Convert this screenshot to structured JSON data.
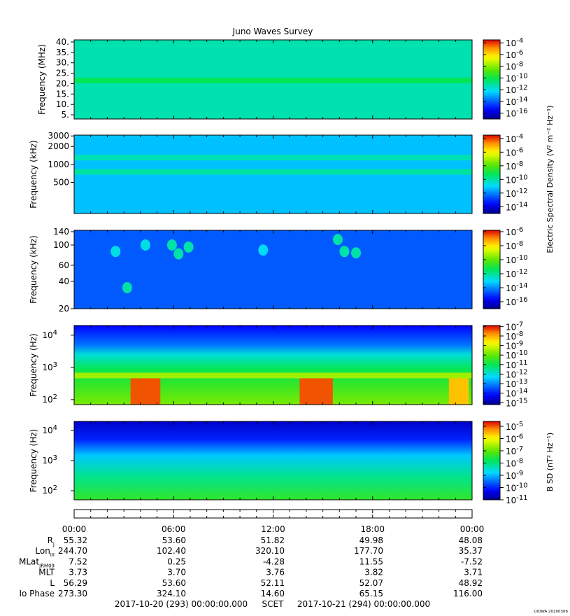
{
  "title": "Juno Waves Survey",
  "chart_data": [
    {
      "type": "heatmap",
      "ylabel": "Frequency (MHz)",
      "y_scale": "linear",
      "ylim": [
        3,
        41
      ],
      "yticks": [
        {
          "v": 5,
          "label": "5."
        },
        {
          "v": 10,
          "label": "10."
        },
        {
          "v": 15,
          "label": "15."
        },
        {
          "v": 20,
          "label": "20."
        },
        {
          "v": 25,
          "label": "25."
        },
        {
          "v": 30,
          "label": "30."
        },
        {
          "v": 35,
          "label": "35."
        },
        {
          "v": 40,
          "label": "40."
        }
      ],
      "colorbar": {
        "ticks": [
          {
            "exp": -4,
            "label": "10",
            "sup": "-4"
          },
          {
            "exp": -6,
            "label": "10",
            "sup": "-6"
          },
          {
            "exp": -8,
            "label": "10",
            "sup": "-8"
          },
          {
            "exp": -10,
            "label": "10",
            "sup": "-10"
          },
          {
            "exp": -12,
            "label": "10",
            "sup": "-12"
          },
          {
            "exp": -14,
            "label": "10",
            "sup": "-14"
          },
          {
            "exp": -16,
            "label": "10",
            "sup": "-16"
          }
        ],
        "range": [
          -17,
          -3.5
        ]
      },
      "background_level": -11.3,
      "bands": [
        {
          "y": 21.5,
          "level": -10.2
        }
      ],
      "blobs": []
    },
    {
      "type": "heatmap",
      "ylabel": "Frequency (kHz)",
      "y_scale": "log",
      "ylim": [
        150,
        3100
      ],
      "yticks": [
        {
          "v": 500,
          "label": "500"
        },
        {
          "v": 1000,
          "label": "1000"
        },
        {
          "v": 2000,
          "label": "2000"
        },
        {
          "v": 3000,
          "label": "3000"
        }
      ],
      "colorbar": {
        "ticks": [
          {
            "exp": -4,
            "label": "10",
            "sup": "-4"
          },
          {
            "exp": -6,
            "label": "10",
            "sup": "-6"
          },
          {
            "exp": -8,
            "label": "10",
            "sup": "-8"
          },
          {
            "exp": -10,
            "label": "10",
            "sup": "-10"
          },
          {
            "exp": -12,
            "label": "10",
            "sup": "-12"
          },
          {
            "exp": -14,
            "label": "10",
            "sup": "-14"
          }
        ],
        "range": [
          -15,
          -3.5
        ]
      },
      "background_level": -11.3,
      "bands": [
        {
          "y": 1300,
          "level": -10.2
        },
        {
          "y": 750,
          "level": -10.0
        }
      ],
      "blobs": []
    },
    {
      "type": "heatmap",
      "ylabel": "Frequency (kHz)",
      "y_scale": "log",
      "ylim": [
        20,
        145
      ],
      "yticks": [
        {
          "v": 20,
          "label": "20"
        },
        {
          "v": 40,
          "label": "40"
        },
        {
          "v": 60,
          "label": "60"
        },
        {
          "v": 100,
          "label": "100"
        },
        {
          "v": 140,
          "label": "140"
        }
      ],
      "colorbar": {
        "ticks": [
          {
            "exp": -6,
            "label": "10",
            "sup": "-6"
          },
          {
            "exp": -8,
            "label": "10",
            "sup": "-8"
          },
          {
            "exp": -10,
            "label": "10",
            "sup": "-10"
          },
          {
            "exp": -12,
            "label": "10",
            "sup": "-12"
          },
          {
            "exp": -14,
            "label": "10",
            "sup": "-14"
          },
          {
            "exp": -16,
            "label": "10",
            "sup": "-16"
          }
        ],
        "range": [
          -17,
          -5.8
        ]
      },
      "background_level": -14.6,
      "bands": [],
      "blobs": [
        {
          "t": 2.5,
          "f": 85,
          "level": -12.8
        },
        {
          "t": 4.3,
          "f": 100,
          "level": -12.8
        },
        {
          "t": 5.9,
          "f": 100,
          "level": -12.2
        },
        {
          "t": 6.3,
          "f": 80,
          "level": -12.2
        },
        {
          "t": 6.9,
          "f": 95,
          "level": -12.2
        },
        {
          "t": 3.2,
          "f": 34,
          "level": -12.2
        },
        {
          "t": 11.4,
          "f": 88,
          "level": -13.0
        },
        {
          "t": 15.9,
          "f": 115,
          "level": -12.2
        },
        {
          "t": 16.3,
          "f": 85,
          "level": -12.2
        },
        {
          "t": 17.0,
          "f": 82,
          "level": -12.2
        }
      ]
    },
    {
      "type": "heatmap",
      "ylabel": "Frequency (Hz)",
      "y_scale": "log",
      "ylim": [
        70,
        20000
      ],
      "yticks": [
        {
          "v": 100,
          "label": "10",
          "sup": "2"
        },
        {
          "v": 1000,
          "label": "10",
          "sup": "3"
        },
        {
          "v": 10000,
          "label": "10",
          "sup": "4"
        }
      ],
      "colorbar": {
        "ticks": [
          {
            "exp": -7,
            "label": "10",
            "sup": "-7"
          },
          {
            "exp": -8,
            "label": "10",
            "sup": "-8"
          },
          {
            "exp": -9,
            "label": "10",
            "sup": "-9"
          },
          {
            "exp": -10,
            "label": "10",
            "sup": "-10"
          },
          {
            "exp": -11,
            "label": "10",
            "sup": "-11"
          },
          {
            "exp": -12,
            "label": "10",
            "sup": "-12"
          },
          {
            "exp": -13,
            "label": "10",
            "sup": "-13"
          },
          {
            "exp": -14,
            "label": "10",
            "sup": "-14"
          },
          {
            "exp": -15,
            "label": "10",
            "sup": "-15"
          }
        ],
        "range": [
          -15.2,
          -6.9
        ]
      },
      "background_level": -14.0,
      "bands": [
        {
          "y": 560,
          "level": -9.5
        }
      ],
      "blobs": [],
      "profile": [
        {
          "f": 20000,
          "level": -14.2
        },
        {
          "f": 5000,
          "level": -13.2
        },
        {
          "f": 2500,
          "level": -12.0
        },
        {
          "f": 900,
          "level": -11.0
        },
        {
          "f": 300,
          "level": -10.5
        },
        {
          "f": 70,
          "level": -9.8
        }
      ],
      "bursts": [
        {
          "t0": 3.4,
          "t1": 5.2,
          "level": -7.4
        },
        {
          "t0": 13.6,
          "t1": 15.6,
          "level": -7.4
        },
        {
          "t0": 22.6,
          "t1": 23.8,
          "level": -8.2
        }
      ]
    },
    {
      "type": "heatmap",
      "ylabel": "Frequency (Hz)",
      "y_scale": "log",
      "ylim": [
        50,
        20000
      ],
      "yticks": [
        {
          "v": 100,
          "label": "10",
          "sup": "2"
        },
        {
          "v": 1000,
          "label": "10",
          "sup": "3"
        },
        {
          "v": 10000,
          "label": "10",
          "sup": "4"
        }
      ],
      "colorbar": {
        "ticks": [
          {
            "exp": -5,
            "label": "10",
            "sup": "-5"
          },
          {
            "exp": -6,
            "label": "10",
            "sup": "-6"
          },
          {
            "exp": -7,
            "label": "10",
            "sup": "-7"
          },
          {
            "exp": -8,
            "label": "10",
            "sup": "-8"
          },
          {
            "exp": -9,
            "label": "10",
            "sup": "-9"
          },
          {
            "exp": -10,
            "label": "10",
            "sup": "-10"
          },
          {
            "exp": -11,
            "label": "10",
            "sup": "-11"
          }
        ],
        "range": [
          -11,
          -4.6
        ]
      },
      "background_level": -10.4,
      "bands": [],
      "blobs": [],
      "profile": [
        {
          "f": 20000,
          "level": -10.6
        },
        {
          "f": 5000,
          "level": -10.0
        },
        {
          "f": 1500,
          "level": -8.9
        },
        {
          "f": 300,
          "level": -8.1
        },
        {
          "f": 50,
          "level": -7.4
        }
      ],
      "bursts": []
    }
  ],
  "colorbar_labels": {
    "electric": "Electric Spectral Density (V² m⁻² Hz⁻¹)",
    "magnetic": "B SD (nT² Hz⁻¹)"
  },
  "x_axis": {
    "ticks": [
      {
        "v": 0,
        "label": "00:00"
      },
      {
        "v": 6,
        "label": "06:00"
      },
      {
        "v": 12,
        "label": "12:00"
      },
      {
        "v": 18,
        "label": "18:00"
      },
      {
        "v": 24,
        "label": "00:00"
      }
    ],
    "xlim": [
      0,
      24
    ]
  },
  "ephemeris": [
    {
      "label": "R",
      "sub": "J",
      "values": [
        "55.32",
        "53.60",
        "51.82",
        "49.98",
        "48.08"
      ]
    },
    {
      "label": "Lon",
      "sub": "III",
      "values": [
        "244.70",
        "102.40",
        "320.10",
        "177.70",
        "35.37"
      ]
    },
    {
      "label": "MLat",
      "sub": "JRM09",
      "values": [
        "7.52",
        "0.25",
        "-4.28",
        "11.55",
        "-7.52"
      ]
    },
    {
      "label": "MLT",
      "sub": "",
      "values": [
        "3.73",
        "3.70",
        "3.76",
        "3.82",
        "3.71"
      ]
    },
    {
      "label": "L",
      "sub": "",
      "values": [
        "56.29",
        "53.60",
        "52.11",
        "52.07",
        "48.92"
      ]
    },
    {
      "label": "Io Phase",
      "sub": "",
      "values": [
        "273.30",
        "324.10",
        "14.60",
        "65.15",
        "116.00"
      ]
    }
  ],
  "footer": {
    "start": "2017-10-20 (293) 00:00:00.000",
    "scet": "SCET",
    "end": "2017-10-21 (294) 00:00:00.000"
  },
  "stamp": "UIOWA 20200306"
}
